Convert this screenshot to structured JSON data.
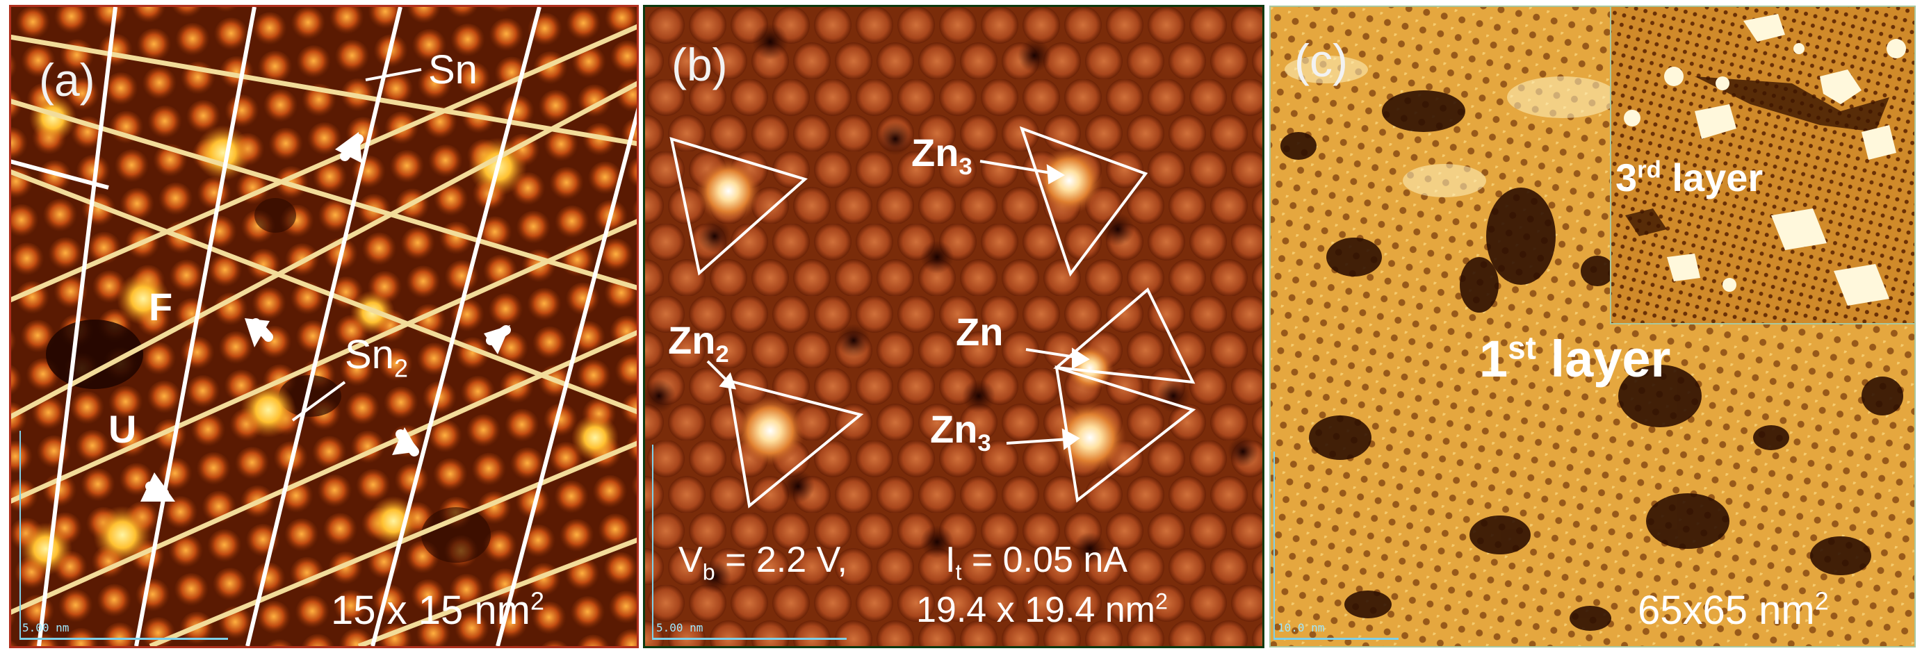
{
  "panels": [
    {
      "letter": "(a)",
      "labels": {
        "sn1": "Sn",
        "sn2": "Sn",
        "sn2_sub": "2",
        "f": "F",
        "u": "U"
      },
      "scale_bar_text": "5.00 nm",
      "size_text": "15 x 15 nm",
      "size_sup": "2"
    },
    {
      "letter": "(b)",
      "labels": {
        "zn3_top": "Zn",
        "zn3_top_sub": "3",
        "zn2": "Zn",
        "zn2_sub": "2",
        "zn": "Zn",
        "zn3_bottom": "Zn",
        "zn3_bottom_sub": "3"
      },
      "vb_prefix": "V",
      "vb_sub": "b",
      "vb_value": " = 2.2 V,",
      "it_prefix": "I",
      "it_sub": "t",
      "it_value": " = 0.05 nA",
      "scale_bar_text": "5.00 nm",
      "size_text": "19.4 x 19.4 nm",
      "size_sup": "2"
    },
    {
      "letter": "(c)",
      "layer1": "1",
      "layer1_sup": "st",
      "layer1_word": " layer",
      "layer3": "3",
      "layer3_sup": "rd",
      "layer3_word": " layer",
      "scale_bar_text": "10.0 nm",
      "size_text": "65x65 nm",
      "size_sup": "2"
    }
  ],
  "colors": {
    "stm_dark": "#3a0c00",
    "stm_mid": "#a63a0a",
    "stm_bright": "#ffd060",
    "grid_yellow": "#f2dc9a",
    "grid_white": "#ffffff"
  }
}
